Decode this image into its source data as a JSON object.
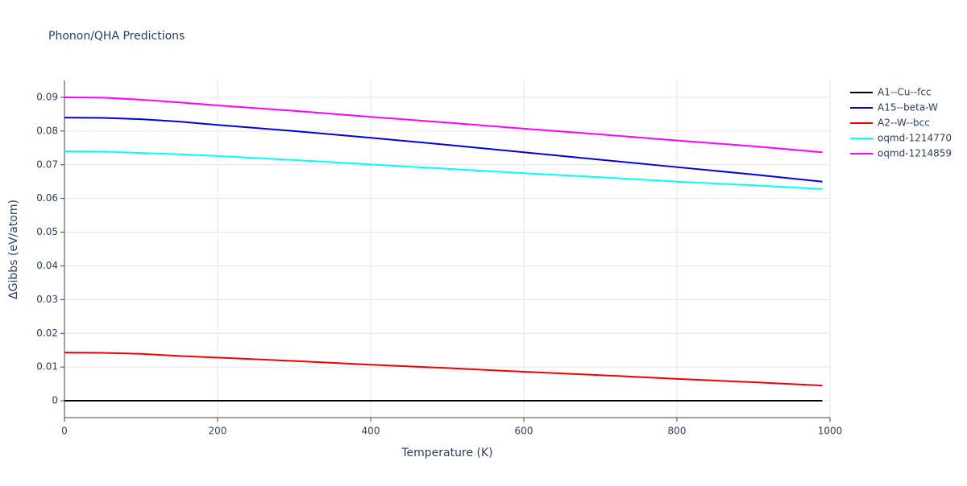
{
  "chart_data": {
    "type": "line",
    "title": "Phonon/QHA Predictions",
    "x_label": "Temperature (K)",
    "y_label": "ΔGibbs (eV/atom)",
    "x": [
      0,
      50,
      100,
      150,
      200,
      300,
      400,
      500,
      600,
      700,
      800,
      900,
      990
    ],
    "series": [
      {
        "name": "A1--Cu--fcc",
        "color": "#000000",
        "values": [
          0,
          0,
          0,
          0,
          0,
          0,
          0,
          0,
          0,
          0,
          0,
          0,
          0
        ]
      },
      {
        "name": "A15--beta-W",
        "color": "#0000dd",
        "values": [
          0.084,
          0.0839,
          0.0835,
          0.0828,
          0.0818,
          0.08,
          0.078,
          0.0759,
          0.0737,
          0.0715,
          0.0693,
          0.0671,
          0.065
        ]
      },
      {
        "name": "A2--W--bcc",
        "color": "#ee0000",
        "values": [
          0.0143,
          0.0142,
          0.0139,
          0.0133,
          0.0128,
          0.0118,
          0.0107,
          0.0097,
          0.0086,
          0.0076,
          0.0065,
          0.0055,
          0.0045
        ]
      },
      {
        "name": "oqmd-1214770",
        "color": "#00ffff",
        "values": [
          0.074,
          0.0739,
          0.0735,
          0.0731,
          0.0726,
          0.0714,
          0.0701,
          0.0688,
          0.0675,
          0.0663,
          0.065,
          0.0639,
          0.0628
        ]
      },
      {
        "name": "oqmd-1214859",
        "color": "#ff00ff",
        "values": [
          0.09,
          0.0899,
          0.0893,
          0.0885,
          0.0876,
          0.086,
          0.0842,
          0.0825,
          0.0807,
          0.079,
          0.0772,
          0.0755,
          0.0737
        ]
      }
    ],
    "xlim": [
      0,
      1000
    ],
    "xticks": [
      0,
      200,
      400,
      600,
      800,
      1000
    ],
    "ylim": [
      -0.005,
      0.095
    ],
    "yticks": [
      0,
      0.01,
      0.02,
      0.03,
      0.04,
      0.05,
      0.06,
      0.07,
      0.08,
      0.09
    ],
    "grid": true,
    "legend": "right"
  }
}
